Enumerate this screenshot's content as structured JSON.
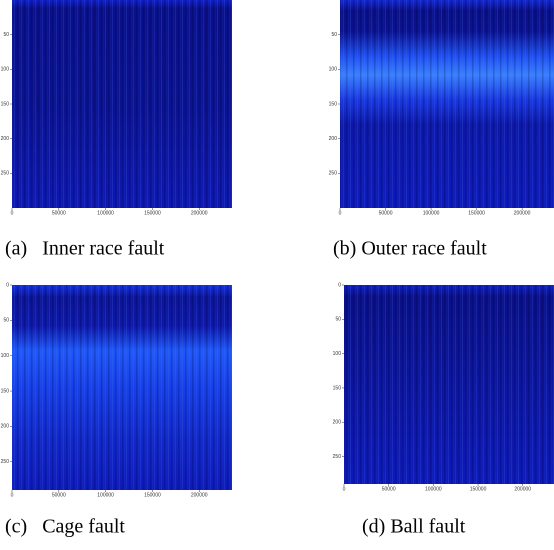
{
  "panels": [
    {
      "caption": "(a)   Inner race fault",
      "xlim": [
        0,
        235000
      ],
      "xticks": [
        0,
        50000,
        100000,
        150000,
        200000
      ],
      "ylim": [
        0,
        300
      ],
      "yticks": [
        50,
        100,
        150,
        200,
        250
      ]
    },
    {
      "caption": "(b) Outer race fault",
      "xlim": [
        0,
        235000
      ],
      "xticks": [
        0,
        50000,
        100000,
        150000,
        200000
      ],
      "ylim": [
        0,
        300
      ],
      "yticks": [
        50,
        100,
        150,
        200,
        250
      ]
    },
    {
      "caption": "(c)   Cage fault",
      "xlim": [
        0,
        235000
      ],
      "xticks": [
        0,
        50000,
        100000,
        150000,
        200000
      ],
      "ylim": [
        0,
        290
      ],
      "yticks": [
        0,
        50,
        100,
        150,
        200,
        250
      ]
    },
    {
      "caption": "(d) Ball fault",
      "xlim": [
        0,
        235000
      ],
      "xticks": [
        0,
        50000,
        100000,
        150000,
        200000
      ],
      "ylim": [
        0,
        290
      ],
      "yticks": [
        0,
        50,
        100,
        150,
        200,
        250
      ]
    }
  ]
}
